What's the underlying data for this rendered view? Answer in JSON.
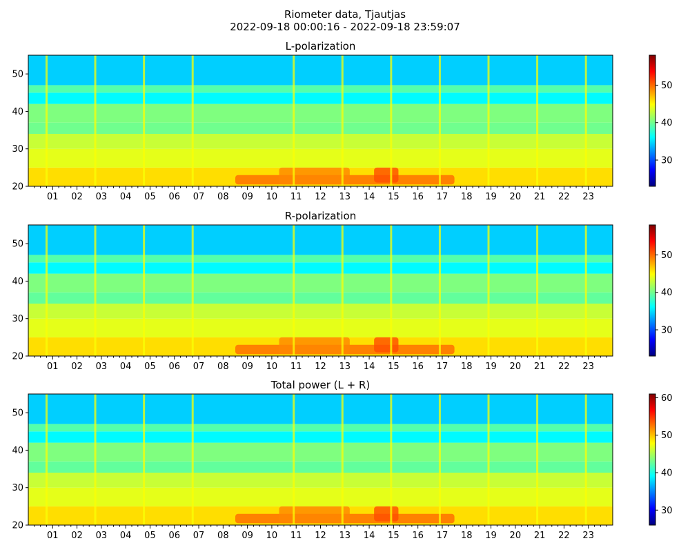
{
  "figure": {
    "title_line1": "Riometer data, Tjautjas",
    "title_line2": "2022-09-18 00:00:16 - 2022-09-18 23:59:07"
  },
  "colormap": [
    "#00007f",
    "#0000ff",
    "#007fff",
    "#00ffff",
    "#7fff7f",
    "#ffff00",
    "#ff7f00",
    "#ff0000",
    "#7f0000"
  ],
  "chart_data": [
    {
      "type": "heatmap",
      "title": "L-polarization",
      "x_range_hours": [
        0,
        24
      ],
      "ylim": [
        20,
        55
      ],
      "yticks": [
        20,
        30,
        40,
        50
      ],
      "xtick_labels": [
        "01",
        "02",
        "03",
        "04",
        "05",
        "06",
        "07",
        "08",
        "09",
        "10",
        "11",
        "12",
        "13",
        "14",
        "15",
        "16",
        "17",
        "18",
        "19",
        "20",
        "21",
        "22",
        "23"
      ],
      "colorbar": {
        "range": [
          23,
          58
        ],
        "ticks": [
          30,
          40,
          50
        ]
      },
      "bands": [
        {
          "from": 20,
          "to": 25,
          "value": 46
        },
        {
          "from": 25,
          "to": 30,
          "value": 44
        },
        {
          "from": 30,
          "to": 34,
          "value": 43
        },
        {
          "from": 34,
          "to": 37,
          "value": 40
        },
        {
          "from": 37,
          "to": 42,
          "value": 40.5
        },
        {
          "from": 42,
          "to": 45,
          "value": 36
        },
        {
          "from": 45,
          "to": 47,
          "value": 39
        },
        {
          "from": 47,
          "to": 55,
          "value": 34.5
        }
      ],
      "bursts": [
        {
          "hour_from": 8.5,
          "hour_to": 17.5,
          "freq_from": 20.5,
          "freq_to": 23,
          "value": 50
        },
        {
          "hour_from": 10.3,
          "hour_to": 13.2,
          "freq_from": 20.5,
          "freq_to": 25,
          "value": 49
        },
        {
          "hour_from": 14.2,
          "hour_to": 15.2,
          "freq_from": 21,
          "freq_to": 25,
          "value": 51
        }
      ],
      "spikes_hours": [
        0.75,
        2.75,
        4.75,
        6.75,
        10.9,
        12.9,
        14.9,
        16.9,
        18.9,
        20.9,
        22.9
      ]
    },
    {
      "type": "heatmap",
      "title": "R-polarization",
      "x_range_hours": [
        0,
        24
      ],
      "ylim": [
        20,
        55
      ],
      "yticks": [
        20,
        30,
        40,
        50
      ],
      "xtick_labels": [
        "01",
        "02",
        "03",
        "04",
        "05",
        "06",
        "07",
        "08",
        "09",
        "10",
        "11",
        "12",
        "13",
        "14",
        "15",
        "16",
        "17",
        "18",
        "19",
        "20",
        "21",
        "22",
        "23"
      ],
      "colorbar": {
        "range": [
          23,
          58
        ],
        "ticks": [
          30,
          40,
          50
        ]
      },
      "bands": [
        {
          "from": 20,
          "to": 25,
          "value": 46
        },
        {
          "from": 25,
          "to": 30,
          "value": 44
        },
        {
          "from": 30,
          "to": 34,
          "value": 43
        },
        {
          "from": 34,
          "to": 37,
          "value": 39.5
        },
        {
          "from": 37,
          "to": 42,
          "value": 40.5
        },
        {
          "from": 42,
          "to": 45,
          "value": 36
        },
        {
          "from": 45,
          "to": 47,
          "value": 39
        },
        {
          "from": 47,
          "to": 55,
          "value": 34.5
        }
      ],
      "bursts": [
        {
          "hour_from": 8.5,
          "hour_to": 17.5,
          "freq_from": 20.5,
          "freq_to": 23,
          "value": 50
        },
        {
          "hour_from": 10.3,
          "hour_to": 13.2,
          "freq_from": 20.5,
          "freq_to": 25,
          "value": 49
        },
        {
          "hour_from": 14.2,
          "hour_to": 15.2,
          "freq_from": 21,
          "freq_to": 25,
          "value": 51
        }
      ],
      "spikes_hours": [
        0.75,
        2.75,
        4.75,
        6.75,
        10.9,
        12.9,
        14.9,
        16.9,
        18.9,
        20.9,
        22.9
      ]
    },
    {
      "type": "heatmap",
      "title": "Total power (L + R)",
      "x_range_hours": [
        0,
        24
      ],
      "ylim": [
        20,
        55
      ],
      "yticks": [
        20,
        30,
        40,
        50
      ],
      "xtick_labels": [
        "01",
        "02",
        "03",
        "04",
        "05",
        "06",
        "07",
        "08",
        "09",
        "10",
        "11",
        "12",
        "13",
        "14",
        "15",
        "16",
        "17",
        "18",
        "19",
        "20",
        "21",
        "22",
        "23"
      ],
      "colorbar": {
        "range": [
          26,
          61
        ],
        "ticks": [
          30,
          40,
          50,
          60
        ]
      },
      "bands": [
        {
          "from": 20,
          "to": 25,
          "value": 49
        },
        {
          "from": 25,
          "to": 30,
          "value": 47
        },
        {
          "from": 30,
          "to": 34,
          "value": 46
        },
        {
          "from": 34,
          "to": 37,
          "value": 42.5
        },
        {
          "from": 37,
          "to": 42,
          "value": 43.5
        },
        {
          "from": 42,
          "to": 45,
          "value": 39
        },
        {
          "from": 45,
          "to": 47,
          "value": 42
        },
        {
          "from": 47,
          "to": 55,
          "value": 37.5
        }
      ],
      "bursts": [
        {
          "hour_from": 8.5,
          "hour_to": 17.5,
          "freq_from": 20.5,
          "freq_to": 23,
          "value": 53
        },
        {
          "hour_from": 10.3,
          "hour_to": 13.2,
          "freq_from": 20.5,
          "freq_to": 25,
          "value": 52
        },
        {
          "hour_from": 14.2,
          "hour_to": 15.2,
          "freq_from": 21,
          "freq_to": 25,
          "value": 54
        }
      ],
      "spikes_hours": [
        0.75,
        2.75,
        4.75,
        6.75,
        10.9,
        12.9,
        14.9,
        16.9,
        18.9,
        20.9,
        22.9
      ]
    }
  ]
}
